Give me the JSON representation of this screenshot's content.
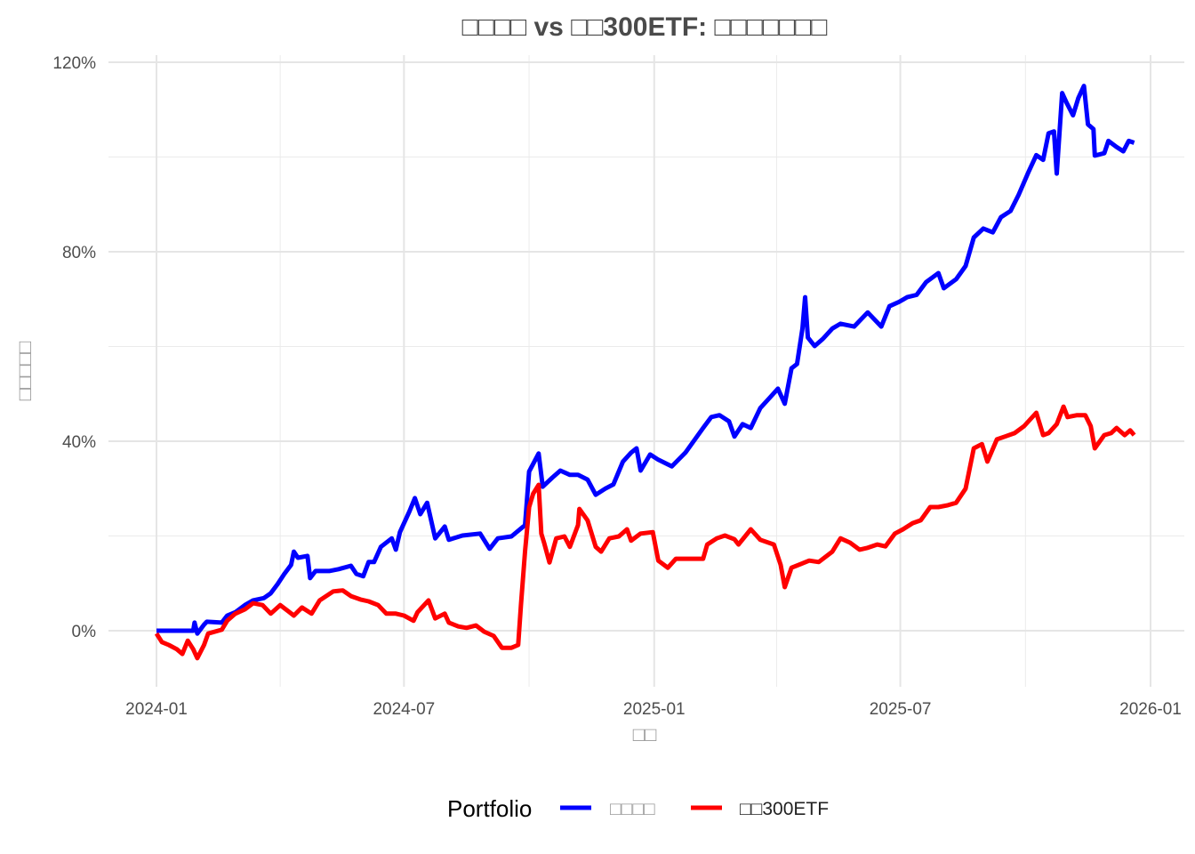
{
  "chart_data": {
    "type": "line",
    "title": "□□□□ vs □□300ETF: □□□□□□□",
    "xlabel": "□□",
    "ylabel": "□□□□□",
    "x_ticks": [
      "2024-01",
      "2024-07",
      "2025-01",
      "2025-07",
      "2026-01"
    ],
    "y_ticks": [
      {
        "v": 0,
        "label": "0%"
      },
      {
        "v": 40,
        "label": "40%"
      },
      {
        "v": 80,
        "label": "80%"
      },
      {
        "v": 120,
        "label": "120%"
      }
    ],
    "ylim": [
      -10,
      121
    ],
    "xlim": [
      "2023-11-25",
      "2026-01-25"
    ],
    "grid": true,
    "legend": {
      "title": "Portfolio",
      "position": "bottom"
    },
    "series": [
      {
        "name": "□□□□",
        "color": "#0000ff",
        "points": [
          [
            "2024-01-01",
            0
          ],
          [
            "2024-01-28",
            0
          ],
          [
            "2024-01-29",
            1.7
          ],
          [
            "2024-01-31",
            -0.6
          ],
          [
            "2024-02-05",
            1.3
          ],
          [
            "2024-02-07",
            1.9
          ],
          [
            "2024-02-18",
            1.7
          ],
          [
            "2024-02-22",
            3.2
          ],
          [
            "2024-02-28",
            3.9
          ],
          [
            "2024-03-06",
            5.4
          ],
          [
            "2024-03-12",
            6.4
          ],
          [
            "2024-03-20",
            6.9
          ],
          [
            "2024-03-25",
            7.9
          ],
          [
            "2024-03-30",
            9.8
          ],
          [
            "2024-04-04",
            12.0
          ],
          [
            "2024-04-09",
            13.9
          ],
          [
            "2024-04-11",
            16.7
          ],
          [
            "2024-04-14",
            15.4
          ],
          [
            "2024-04-21",
            15.8
          ],
          [
            "2024-04-23",
            11.1
          ],
          [
            "2024-04-27",
            12.6
          ],
          [
            "2024-05-07",
            12.6
          ],
          [
            "2024-05-14",
            13.0
          ],
          [
            "2024-05-23",
            13.7
          ],
          [
            "2024-05-27",
            12.0
          ],
          [
            "2024-06-01",
            11.5
          ],
          [
            "2024-06-05",
            14.5
          ],
          [
            "2024-06-09",
            14.5
          ],
          [
            "2024-06-14",
            17.7
          ],
          [
            "2024-06-22",
            19.5
          ],
          [
            "2024-06-25",
            17.1
          ],
          [
            "2024-06-28",
            20.8
          ],
          [
            "2024-07-05",
            25.2
          ],
          [
            "2024-07-09",
            28.0
          ],
          [
            "2024-07-13",
            24.6
          ],
          [
            "2024-07-18",
            27.0
          ],
          [
            "2024-07-24",
            19.5
          ],
          [
            "2024-07-31",
            22.0
          ],
          [
            "2024-08-03",
            19.2
          ],
          [
            "2024-08-13",
            20.1
          ],
          [
            "2024-08-26",
            20.5
          ],
          [
            "2024-09-02",
            17.3
          ],
          [
            "2024-09-08",
            19.5
          ],
          [
            "2024-09-18",
            19.9
          ],
          [
            "2024-09-28",
            22.3
          ],
          [
            "2024-10-01",
            33.6
          ],
          [
            "2024-10-08",
            37.4
          ],
          [
            "2024-10-11",
            30.4
          ],
          [
            "2024-10-18",
            32.3
          ],
          [
            "2024-10-24",
            33.8
          ],
          [
            "2024-10-31",
            32.9
          ],
          [
            "2024-11-06",
            32.9
          ],
          [
            "2024-11-13",
            31.9
          ],
          [
            "2024-11-19",
            28.7
          ],
          [
            "2024-11-26",
            30.0
          ],
          [
            "2024-12-02",
            30.9
          ],
          [
            "2024-12-09",
            35.7
          ],
          [
            "2024-12-15",
            37.6
          ],
          [
            "2024-12-19",
            38.5
          ],
          [
            "2024-12-22",
            33.8
          ],
          [
            "2024-12-29",
            37.2
          ],
          [
            "2025-01-04",
            36.1
          ],
          [
            "2025-01-14",
            34.7
          ],
          [
            "2025-01-24",
            37.6
          ],
          [
            "2025-02-06",
            42.8
          ],
          [
            "2025-02-12",
            45.1
          ],
          [
            "2025-02-18",
            45.5
          ],
          [
            "2025-02-25",
            44.2
          ],
          [
            "2025-03-01",
            41.0
          ],
          [
            "2025-03-07",
            43.6
          ],
          [
            "2025-03-13",
            42.8
          ],
          [
            "2025-03-20",
            47.0
          ],
          [
            "2025-03-27",
            49.2
          ],
          [
            "2025-04-02",
            51.1
          ],
          [
            "2025-04-07",
            47.9
          ],
          [
            "2025-04-12",
            55.4
          ],
          [
            "2025-04-16",
            56.3
          ],
          [
            "2025-04-20",
            63.8
          ],
          [
            "2025-04-22",
            70.4
          ],
          [
            "2025-04-24",
            61.9
          ],
          [
            "2025-04-29",
            60.1
          ],
          [
            "2025-05-05",
            61.6
          ],
          [
            "2025-05-12",
            63.8
          ],
          [
            "2025-05-18",
            64.8
          ],
          [
            "2025-05-28",
            64.2
          ],
          [
            "2025-06-07",
            67.2
          ],
          [
            "2025-06-17",
            64.2
          ],
          [
            "2025-06-23",
            68.5
          ],
          [
            "2025-06-30",
            69.4
          ],
          [
            "2025-07-06",
            70.4
          ],
          [
            "2025-07-13",
            70.9
          ],
          [
            "2025-07-20",
            73.6
          ],
          [
            "2025-07-29",
            75.5
          ],
          [
            "2025-08-02",
            72.3
          ],
          [
            "2025-08-11",
            74.2
          ],
          [
            "2025-08-18",
            77.0
          ],
          [
            "2025-08-24",
            83.0
          ],
          [
            "2025-08-31",
            84.9
          ],
          [
            "2025-09-07",
            84.1
          ],
          [
            "2025-09-13",
            87.3
          ],
          [
            "2025-09-20",
            88.6
          ],
          [
            "2025-09-26",
            92.0
          ],
          [
            "2025-10-03",
            96.7
          ],
          [
            "2025-10-09",
            100.4
          ],
          [
            "2025-10-14",
            99.4
          ],
          [
            "2025-10-18",
            105.0
          ],
          [
            "2025-10-22",
            105.4
          ],
          [
            "2025-10-24",
            96.5
          ],
          [
            "2025-10-28",
            113.5
          ],
          [
            "2025-10-31",
            111.6
          ],
          [
            "2025-11-05",
            108.8
          ],
          [
            "2025-11-09",
            112.5
          ],
          [
            "2025-11-13",
            115.0
          ],
          [
            "2025-11-16",
            106.9
          ],
          [
            "2025-11-20",
            105.9
          ],
          [
            "2025-11-21",
            100.3
          ],
          [
            "2025-11-28",
            100.8
          ],
          [
            "2025-12-01",
            103.4
          ],
          [
            "2025-12-07",
            102.1
          ],
          [
            "2025-12-12",
            101.2
          ],
          [
            "2025-12-16",
            103.4
          ],
          [
            "2025-12-20",
            103.0
          ]
        ]
      },
      {
        "name": "□□300ETF",
        "color": "#ff0000",
        "points": [
          [
            "2024-01-01",
            -0.6
          ],
          [
            "2024-01-05",
            -2.4
          ],
          [
            "2024-01-10",
            -3.0
          ],
          [
            "2024-01-16",
            -3.9
          ],
          [
            "2024-01-20",
            -4.9
          ],
          [
            "2024-01-24",
            -2.1
          ],
          [
            "2024-01-28",
            -3.9
          ],
          [
            "2024-01-31",
            -5.8
          ],
          [
            "2024-02-05",
            -3.0
          ],
          [
            "2024-02-08",
            -0.6
          ],
          [
            "2024-02-18",
            0.2
          ],
          [
            "2024-02-22",
            2.1
          ],
          [
            "2024-02-28",
            3.6
          ],
          [
            "2024-03-06",
            4.5
          ],
          [
            "2024-03-12",
            5.8
          ],
          [
            "2024-03-19",
            5.4
          ],
          [
            "2024-03-25",
            3.6
          ],
          [
            "2024-04-01",
            5.4
          ],
          [
            "2024-04-07",
            4.1
          ],
          [
            "2024-04-11",
            3.2
          ],
          [
            "2024-04-17",
            4.9
          ],
          [
            "2024-04-24",
            3.6
          ],
          [
            "2024-04-30",
            6.4
          ],
          [
            "2024-05-10",
            8.3
          ],
          [
            "2024-05-17",
            8.5
          ],
          [
            "2024-05-23",
            7.3
          ],
          [
            "2024-05-30",
            6.6
          ],
          [
            "2024-06-05",
            6.2
          ],
          [
            "2024-06-12",
            5.4
          ],
          [
            "2024-06-18",
            3.6
          ],
          [
            "2024-06-25",
            3.6
          ],
          [
            "2024-07-01",
            3.2
          ],
          [
            "2024-07-08",
            2.1
          ],
          [
            "2024-07-11",
            3.9
          ],
          [
            "2024-07-19",
            6.4
          ],
          [
            "2024-07-24",
            2.6
          ],
          [
            "2024-07-31",
            3.6
          ],
          [
            "2024-08-03",
            1.7
          ],
          [
            "2024-08-10",
            0.9
          ],
          [
            "2024-08-16",
            0.6
          ],
          [
            "2024-08-23",
            1.1
          ],
          [
            "2024-08-29",
            -0.2
          ],
          [
            "2024-09-05",
            -1.1
          ],
          [
            "2024-09-11",
            -3.6
          ],
          [
            "2024-09-18",
            -3.6
          ],
          [
            "2024-09-23",
            -3.0
          ],
          [
            "2024-09-25",
            5.4
          ],
          [
            "2024-09-28",
            16.7
          ],
          [
            "2024-10-01",
            26.1
          ],
          [
            "2024-10-04",
            28.9
          ],
          [
            "2024-10-08",
            30.8
          ],
          [
            "2024-10-10",
            20.5
          ],
          [
            "2024-10-12",
            18.6
          ],
          [
            "2024-10-16",
            14.4
          ],
          [
            "2024-10-21",
            19.5
          ],
          [
            "2024-10-27",
            19.9
          ],
          [
            "2024-10-31",
            17.7
          ],
          [
            "2024-11-06",
            22.3
          ],
          [
            "2024-11-07",
            25.7
          ],
          [
            "2024-11-13",
            23.3
          ],
          [
            "2024-11-19",
            17.7
          ],
          [
            "2024-11-23",
            16.7
          ],
          [
            "2024-11-29",
            19.5
          ],
          [
            "2024-12-06",
            19.9
          ],
          [
            "2024-12-12",
            21.4
          ],
          [
            "2024-12-15",
            19.0
          ],
          [
            "2024-12-22",
            20.5
          ],
          [
            "2024-12-31",
            20.8
          ],
          [
            "2025-01-04",
            14.8
          ],
          [
            "2025-01-11",
            13.3
          ],
          [
            "2025-01-17",
            15.2
          ],
          [
            "2025-01-30",
            15.2
          ],
          [
            "2025-02-06",
            15.2
          ],
          [
            "2025-02-09",
            18.2
          ],
          [
            "2025-02-16",
            19.5
          ],
          [
            "2025-02-22",
            20.1
          ],
          [
            "2025-03-01",
            19.3
          ],
          [
            "2025-03-04",
            18.2
          ],
          [
            "2025-03-13",
            21.4
          ],
          [
            "2025-03-20",
            19.2
          ],
          [
            "2025-03-30",
            18.2
          ],
          [
            "2025-04-04",
            13.9
          ],
          [
            "2025-04-07",
            9.2
          ],
          [
            "2025-04-12",
            13.3
          ],
          [
            "2025-04-19",
            14.1
          ],
          [
            "2025-04-25",
            14.8
          ],
          [
            "2025-05-02",
            14.5
          ],
          [
            "2025-05-12",
            16.7
          ],
          [
            "2025-05-18",
            19.5
          ],
          [
            "2025-05-25",
            18.6
          ],
          [
            "2025-06-01",
            17.1
          ],
          [
            "2025-06-07",
            17.5
          ],
          [
            "2025-06-14",
            18.2
          ],
          [
            "2025-06-20",
            17.8
          ],
          [
            "2025-06-27",
            20.5
          ],
          [
            "2025-07-03",
            21.4
          ],
          [
            "2025-07-10",
            22.7
          ],
          [
            "2025-07-16",
            23.3
          ],
          [
            "2025-07-23",
            26.1
          ],
          [
            "2025-07-29",
            26.1
          ],
          [
            "2025-08-05",
            26.5
          ],
          [
            "2025-08-11",
            27.0
          ],
          [
            "2025-08-18",
            30.0
          ],
          [
            "2025-08-24",
            38.5
          ],
          [
            "2025-08-30",
            39.4
          ],
          [
            "2025-09-03",
            35.7
          ],
          [
            "2025-09-10",
            40.4
          ],
          [
            "2025-09-16",
            41.0
          ],
          [
            "2025-09-23",
            41.7
          ],
          [
            "2025-09-30",
            43.2
          ],
          [
            "2025-10-09",
            46.0
          ],
          [
            "2025-10-14",
            41.3
          ],
          [
            "2025-10-18",
            41.7
          ],
          [
            "2025-10-24",
            43.6
          ],
          [
            "2025-10-29",
            47.3
          ],
          [
            "2025-11-01",
            45.1
          ],
          [
            "2025-11-08",
            45.5
          ],
          [
            "2025-11-14",
            45.5
          ],
          [
            "2025-11-18",
            43.2
          ],
          [
            "2025-11-21",
            38.5
          ],
          [
            "2025-11-28",
            41.3
          ],
          [
            "2025-12-03",
            41.7
          ],
          [
            "2025-12-07",
            42.8
          ],
          [
            "2025-12-13",
            41.3
          ],
          [
            "2025-12-17",
            42.3
          ],
          [
            "2025-12-20",
            41.3
          ]
        ]
      }
    ]
  }
}
